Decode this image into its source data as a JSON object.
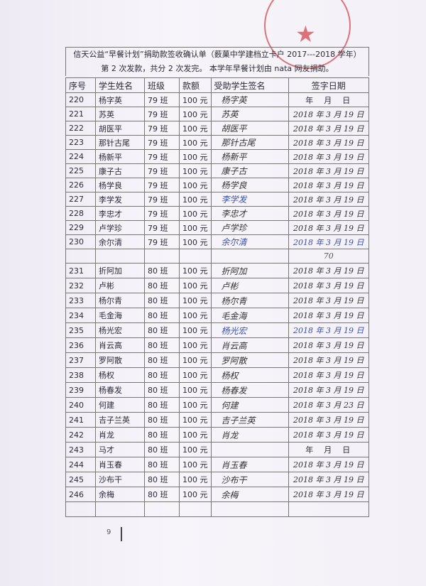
{
  "title": {
    "line1": "信天公益“早餐计划”捐助款签收确认单（薮菓中学建档立卡户 2017---2018 学年）",
    "line2": "第 2 次发款，共分 2 次发完。   本学年早餐计划由 nata 网友捐助。"
  },
  "headers": {
    "no": "序号",
    "name": "学生姓名",
    "class": "班级",
    "amount": "款额",
    "signature": "受助学生签名",
    "date": "签字日期"
  },
  "stamp_color": "#d23c46",
  "group1": [
    {
      "no": "220",
      "name": "杨字英",
      "class": "79 班",
      "amount": "100 元",
      "sig": "杨字英",
      "date": "年　月　日"
    },
    {
      "no": "221",
      "name": "苏英",
      "class": "79 班",
      "amount": "100 元",
      "sig": "苏英",
      "date": "2018 年 3 月 19 日"
    },
    {
      "no": "222",
      "name": "胡医平",
      "class": "79 班",
      "amount": "100 元",
      "sig": "胡医平",
      "date": "2018 年 3 月 19 日"
    },
    {
      "no": "223",
      "name": "那针古尾",
      "class": "79 班",
      "amount": "100 元",
      "sig": "那针古尾",
      "date": "2018 年 3 月 19 日"
    },
    {
      "no": "224",
      "name": "杨新平",
      "class": "79 班",
      "amount": "100 元",
      "sig": "杨新平",
      "date": "2018 年 3 月 19 日"
    },
    {
      "no": "225",
      "name": "康子古",
      "class": "79 班",
      "amount": "100 元",
      "sig": "康子古",
      "date": "2018 年 3 月 19 日"
    },
    {
      "no": "226",
      "name": "杨学良",
      "class": "79 班",
      "amount": "100 元",
      "sig": "杨学良",
      "date": "2018 年 3 月 19 日"
    },
    {
      "no": "227",
      "name": "李学发",
      "class": "79 班",
      "amount": "100 元",
      "sig": "李学发",
      "date": "2018 年 3 月 19 日"
    },
    {
      "no": "228",
      "name": "李忠才",
      "class": "79 班",
      "amount": "100 元",
      "sig": "李忠才",
      "date": "2018 年 3 月 19 日"
    },
    {
      "no": "229",
      "name": "卢学珍",
      "class": "79 班",
      "amount": "100 元",
      "sig": "卢学珍",
      "date": "2018 年 3 月 19 日"
    },
    {
      "no": "230",
      "name": "余尔清",
      "class": "79 班",
      "amount": "100 元",
      "sig": "余尔清",
      "date": "2018 年 3 月 19 日"
    }
  ],
  "subtotal_note": "70",
  "group2": [
    {
      "no": "231",
      "name": "折阿加",
      "class": "80 班",
      "amount": "100 元",
      "sig": "折阿加",
      "date": "2018 年 3 月 19 日"
    },
    {
      "no": "232",
      "name": "卢彬",
      "class": "80 班",
      "amount": "100 元",
      "sig": "卢彬",
      "date": "2018 年 3 月 19 日"
    },
    {
      "no": "233",
      "name": "杨尔青",
      "class": "80 班",
      "amount": "100 元",
      "sig": "杨尔青",
      "date": "2018 年 3 月 19 日"
    },
    {
      "no": "234",
      "name": "毛金海",
      "class": "80 班",
      "amount": "100 元",
      "sig": "毛金海",
      "date": "2018 年 3 月 19 日"
    },
    {
      "no": "235",
      "name": "杨光宏",
      "class": "80 班",
      "amount": "100 元",
      "sig": "杨光宏",
      "date": "2018 年 3 月 19 日"
    },
    {
      "no": "236",
      "name": "肖云高",
      "class": "80 班",
      "amount": "100 元",
      "sig": "肖云高",
      "date": "2018 年 3 月 19 日"
    },
    {
      "no": "237",
      "name": "罗阿散",
      "class": "80 班",
      "amount": "100 元",
      "sig": "罗阿散",
      "date": "2018 年 3 月 19 日"
    },
    {
      "no": "238",
      "name": "杨权",
      "class": "80 班",
      "amount": "100 元",
      "sig": "杨权",
      "date": "2018 年 3 月 19 日"
    },
    {
      "no": "239",
      "name": "杨春发",
      "class": "80 班",
      "amount": "100 元",
      "sig": "杨春发",
      "date": "2018 年 3 月 19 日"
    },
    {
      "no": "240",
      "name": "何建",
      "class": "80 班",
      "amount": "100 元",
      "sig": "何建",
      "date": "2018 年 3 月 23 日"
    },
    {
      "no": "241",
      "name": "吉子兰英",
      "class": "80 班",
      "amount": "100 元",
      "sig": "吉子兰英",
      "date": "2018 年 3 月 19 日"
    },
    {
      "no": "242",
      "name": "肖龙",
      "class": "80 班",
      "amount": "100 元",
      "sig": "肖龙",
      "date": "2018 年 3 月 19 日"
    },
    {
      "no": "243",
      "name": "马才",
      "class": "80 班",
      "amount": "100 元",
      "sig": "",
      "date": "年　月　日"
    },
    {
      "no": "244",
      "name": "肖玉春",
      "class": "80 班",
      "amount": "100 元",
      "sig": "肖玉春",
      "date": "2018 年 3 月 19 日"
    },
    {
      "no": "245",
      "name": "沙布干",
      "class": "80 班",
      "amount": "100 元",
      "sig": "沙布干",
      "date": "2018 年 3 月 19 日"
    },
    {
      "no": "246",
      "name": "余梅",
      "class": "80 班",
      "amount": "100 元",
      "sig": "余梅",
      "date": "2018 年 3 月 19 日"
    }
  ],
  "page_number": "9"
}
